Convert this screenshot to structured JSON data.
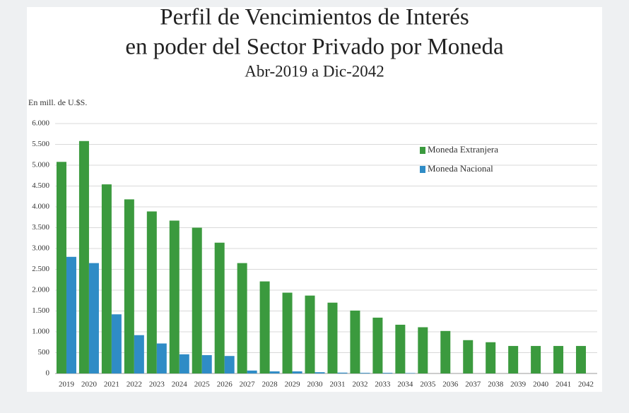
{
  "chart_data": {
    "type": "bar",
    "title": "Perfil de Vencimientos de Interés",
    "title_line2": "en poder del Sector Privado por Moneda",
    "subtitle": "Abr-2019 a Dic-2042",
    "y_label": "En mill. de U.$S.",
    "categories": [
      "2019",
      "2020",
      "2021",
      "2022",
      "2023",
      "2024",
      "2025",
      "2026",
      "2027",
      "2028",
      "2029",
      "2030",
      "2031",
      "2032",
      "2033",
      "2034",
      "2035",
      "2036",
      "2037",
      "2038",
      "2039",
      "2040",
      "2041",
      "2042"
    ],
    "series": [
      {
        "name": "Moneda Extranjera",
        "color": "#3b9a3e",
        "values": [
          5080,
          5580,
          4540,
          4180,
          3890,
          3670,
          3500,
          3140,
          2650,
          2210,
          1940,
          1870,
          1700,
          1510,
          1340,
          1170,
          1110,
          1020,
          800,
          750,
          660,
          660,
          660,
          660
        ]
      },
      {
        "name": "Moneda Nacional",
        "color": "#2f8cc6",
        "values": [
          2800,
          2650,
          1420,
          920,
          720,
          460,
          440,
          420,
          70,
          50,
          50,
          30,
          20,
          15,
          15,
          10,
          0,
          0,
          0,
          0,
          0,
          0,
          0,
          0
        ]
      }
    ],
    "ylim": [
      0,
      6000
    ],
    "yticks": [
      0,
      500,
      {
        "value": 1000,
        "label": "1.000"
      },
      {
        "value": 1500,
        "label": "1.500"
      },
      {
        "value": 2000,
        "label": "2.000"
      },
      {
        "value": 2500,
        "label": "2.500"
      },
      {
        "value": 3000,
        "label": "3.000"
      },
      {
        "value": 3500,
        "label": "3.500"
      },
      {
        "value": 4000,
        "label": "4.000"
      },
      {
        "value": 4500,
        "label": "4.500"
      },
      {
        "value": 5000,
        "label": "5.000"
      },
      {
        "value": 5500,
        "label": "5.500"
      },
      {
        "value": 6000,
        "label": "6.000"
      }
    ],
    "grid": true
  }
}
